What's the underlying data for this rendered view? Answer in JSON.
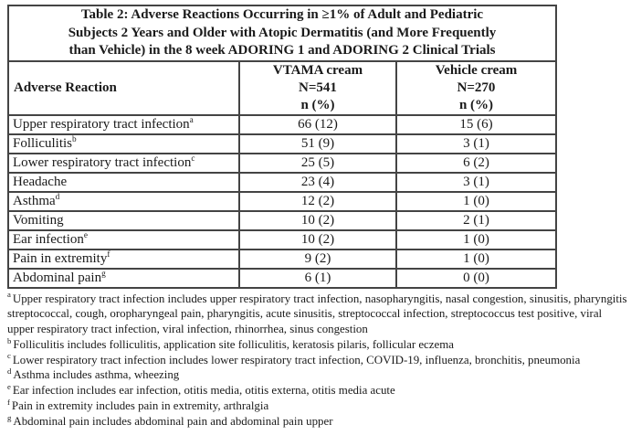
{
  "colors": {
    "text": "#1a1a1a",
    "border": "#444444",
    "background": "#ffffff"
  },
  "table": {
    "title_lines": [
      "Table 2: Adverse Reactions Occurring in ≥1% of Adult and Pediatric",
      "Subjects 2 Years and Older with Atopic Dermatitis (and More Frequently",
      "than Vehicle) in the 8 week ADORING 1 and ADORING 2 Clinical Trials"
    ],
    "columns": {
      "reaction": "Adverse Reaction",
      "vtama_lines": [
        "VTAMA cream",
        "N=541",
        "n (%)"
      ],
      "vehicle_lines": [
        "Vehicle cream",
        "N=270",
        "n (%)"
      ]
    },
    "rows": [
      {
        "reaction": "Upper respiratory tract infection",
        "sup": "a",
        "vtama": "66 (12)",
        "vehicle": "15 (6)"
      },
      {
        "reaction": "Folliculitis",
        "sup": "b",
        "vtama": "51 (9)",
        "vehicle": "3 (1)"
      },
      {
        "reaction": "Lower respiratory tract infection",
        "sup": "c",
        "vtama": "25 (5)",
        "vehicle": "6 (2)"
      },
      {
        "reaction": "Headache",
        "sup": "",
        "vtama": "23 (4)",
        "vehicle": "3 (1)"
      },
      {
        "reaction": "Asthma",
        "sup": "d",
        "vtama": "12 (2)",
        "vehicle": "1 (0)"
      },
      {
        "reaction": "Vomiting",
        "sup": "",
        "vtama": "10 (2)",
        "vehicle": "2 (1)"
      },
      {
        "reaction": "Ear infection",
        "sup": "e",
        "vtama": "10 (2)",
        "vehicle": "1 (0)"
      },
      {
        "reaction": "Pain in extremity",
        "sup": "f",
        "vtama": "9 (2)",
        "vehicle": "1 (0)"
      },
      {
        "reaction": "Abdominal pain",
        "sup": "g",
        "vtama": "6 (1)",
        "vehicle": "0 (0)"
      }
    ],
    "footnotes": [
      {
        "sup": "a",
        "text": "Upper respiratory tract infection includes upper respiratory tract infection, nasopharyngitis, nasal congestion, sinusitis, pharyngitis streptococcal, cough, oropharyngeal pain, pharyngitis, acute sinusitis, streptococcal infection, streptococcus test positive, viral upper respiratory tract infection, viral infection, rhinorrhea, sinus congestion"
      },
      {
        "sup": "b",
        "text": "Folliculitis includes folliculitis, application site folliculitis, keratosis pilaris, follicular eczema"
      },
      {
        "sup": "c",
        "text": "Lower respiratory tract infection includes lower respiratory tract infection, COVID-19, influenza, bronchitis, pneumonia"
      },
      {
        "sup": "d",
        "text": "Asthma includes asthma, wheezing"
      },
      {
        "sup": "e",
        "text": "Ear infection includes ear infection, otitis media, otitis externa, otitis media acute"
      },
      {
        "sup": "f",
        "text": "Pain in extremity includes pain in extremity, arthralgia"
      },
      {
        "sup": "g",
        "text": "Abdominal pain includes abdominal pain and abdominal pain upper"
      }
    ]
  }
}
